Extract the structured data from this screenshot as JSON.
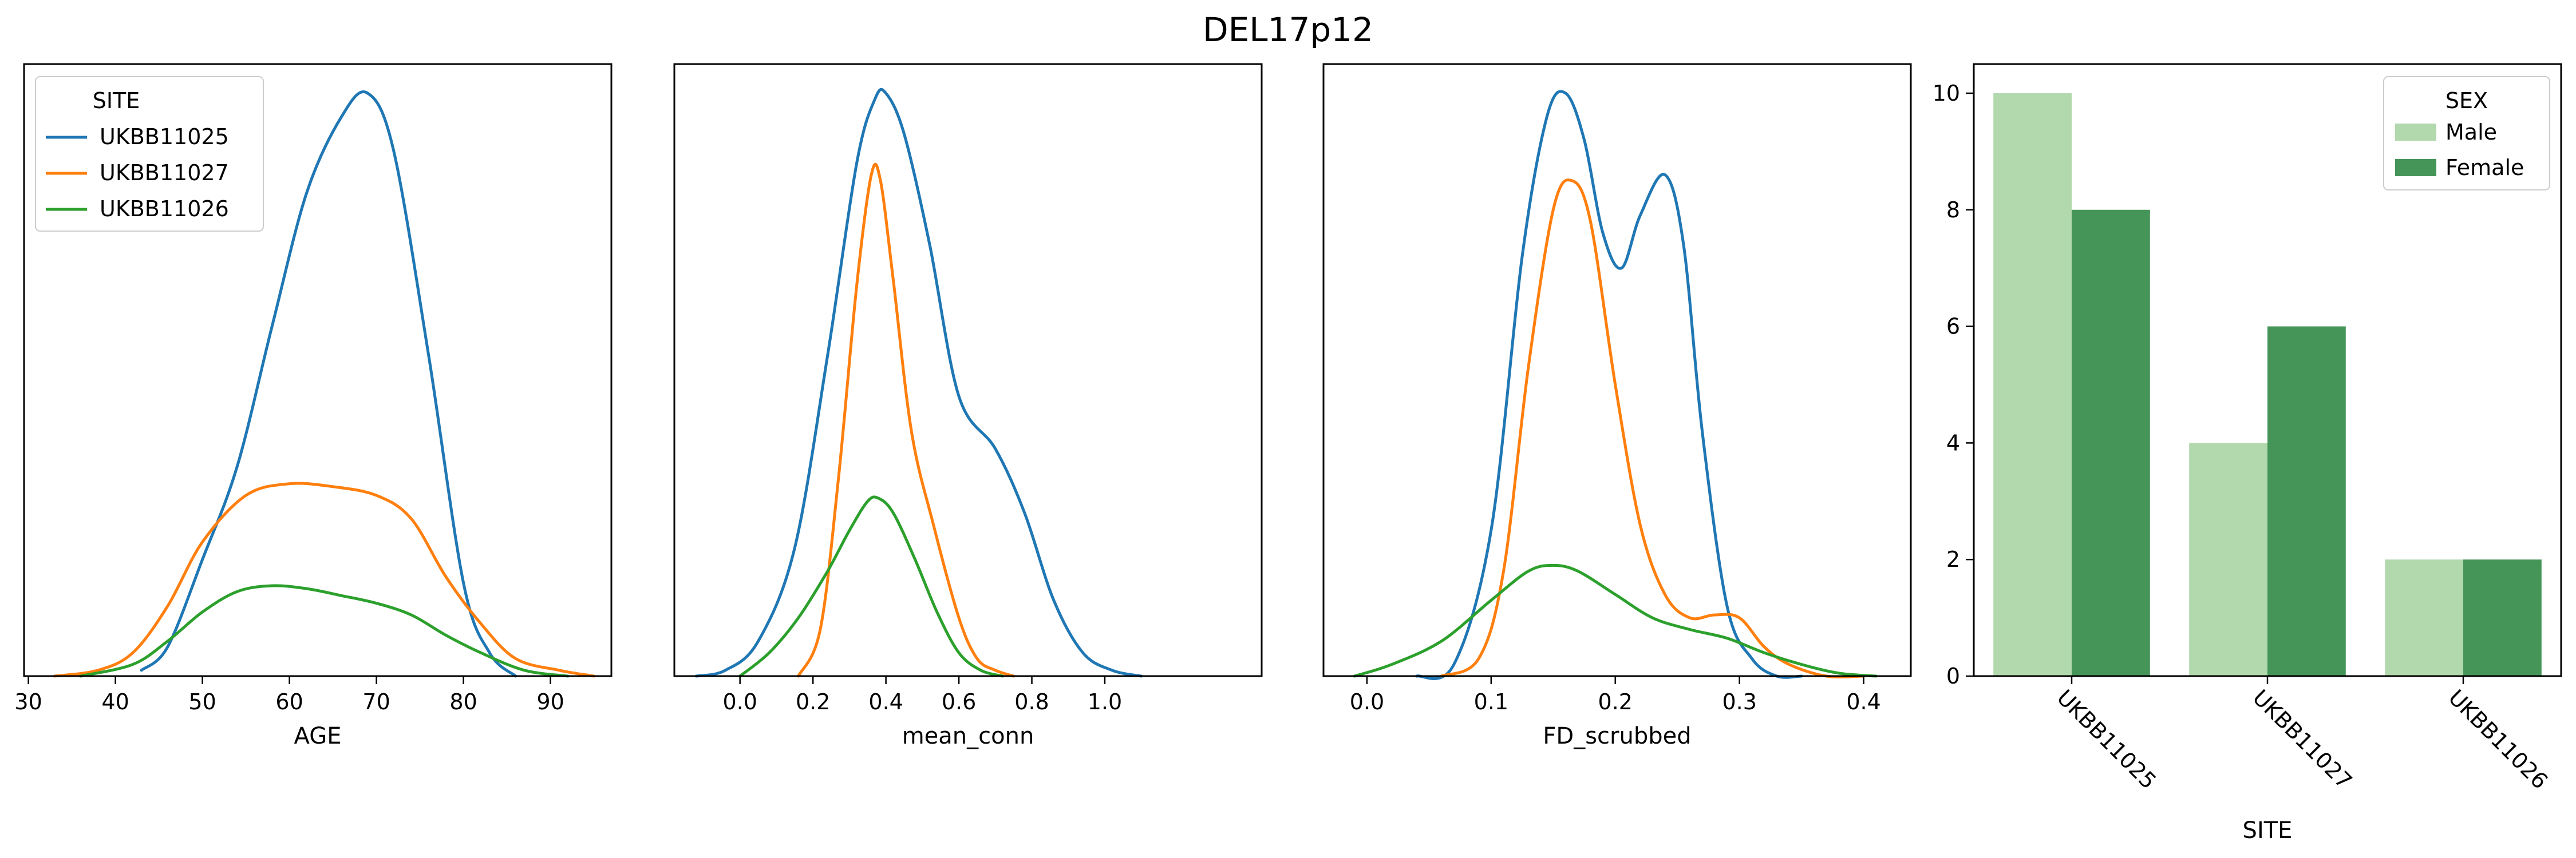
{
  "figure": {
    "title": "DEL17p12"
  },
  "colors": {
    "UKBB11025": "#1f77b4",
    "UKBB11027": "#ff7f0e",
    "UKBB11026": "#2ca02c",
    "Male": "#b2d8ad",
    "Female": "#459559"
  },
  "chart_data": [
    {
      "type": "line",
      "subtype": "kde",
      "xlabel": "AGE",
      "ylabel": "",
      "xlim": [
        29.5,
        97
      ],
      "xticks": [
        30,
        40,
        50,
        60,
        70,
        80,
        90
      ],
      "ylim": [
        0,
        1.05
      ],
      "yticks_visible": false,
      "legend": {
        "title": "SITE",
        "position": "top-left",
        "entries": [
          "UKBB11025",
          "UKBB11027",
          "UKBB11026"
        ]
      },
      "series": [
        {
          "name": "UKBB11025",
          "x": [
            43,
            46,
            50,
            54,
            58,
            62,
            66,
            69,
            72,
            76,
            80,
            83,
            86
          ],
          "y": [
            0.01,
            0.05,
            0.2,
            0.36,
            0.6,
            0.83,
            0.96,
            1.0,
            0.9,
            0.55,
            0.16,
            0.04,
            0.0
          ]
        },
        {
          "name": "UKBB11027",
          "x": [
            33,
            38,
            42,
            46,
            50,
            55,
            60,
            65,
            70,
            74,
            78,
            82,
            86,
            91,
            95
          ],
          "y": [
            0.0,
            0.01,
            0.04,
            0.12,
            0.23,
            0.31,
            0.33,
            0.325,
            0.31,
            0.27,
            0.17,
            0.09,
            0.03,
            0.01,
            0.0
          ]
        },
        {
          "name": "UKBB11026",
          "x": [
            36,
            42,
            46,
            50,
            54,
            58,
            62,
            66,
            70,
            74,
            78,
            82,
            87,
            92
          ],
          "y": [
            0.0,
            0.02,
            0.06,
            0.11,
            0.145,
            0.155,
            0.15,
            0.138,
            0.125,
            0.105,
            0.07,
            0.04,
            0.01,
            0.0
          ]
        }
      ]
    },
    {
      "type": "line",
      "subtype": "kde",
      "xlabel": "mean_conn",
      "ylabel": "",
      "xlim": [
        -0.18,
        1.43
      ],
      "xticks": [
        0.0,
        0.2,
        0.4,
        0.6,
        0.8,
        1.0
      ],
      "ylim": [
        0,
        1.05
      ],
      "yticks_visible": false,
      "series": [
        {
          "name": "UKBB11025",
          "x": [
            -0.12,
            -0.04,
            0.05,
            0.15,
            0.24,
            0.32,
            0.37,
            0.4,
            0.45,
            0.52,
            0.6,
            0.7,
            0.78,
            0.86,
            0.94,
            1.02,
            1.1
          ],
          "y": [
            0.0,
            0.01,
            0.06,
            0.22,
            0.55,
            0.88,
            0.99,
            1.0,
            0.93,
            0.74,
            0.48,
            0.39,
            0.28,
            0.13,
            0.04,
            0.01,
            0.0
          ]
        },
        {
          "name": "UKBB11027",
          "x": [
            0.16,
            0.22,
            0.27,
            0.32,
            0.36,
            0.385,
            0.42,
            0.47,
            0.53,
            0.6,
            0.65,
            0.7,
            0.75
          ],
          "y": [
            0.0,
            0.08,
            0.34,
            0.67,
            0.86,
            0.85,
            0.68,
            0.42,
            0.26,
            0.1,
            0.03,
            0.01,
            0.0
          ]
        },
        {
          "name": "UKBB11026",
          "x": [
            0.0,
            0.08,
            0.16,
            0.24,
            0.3,
            0.35,
            0.38,
            0.42,
            0.48,
            0.54,
            0.6,
            0.66,
            0.72
          ],
          "y": [
            0.0,
            0.04,
            0.1,
            0.18,
            0.25,
            0.3,
            0.305,
            0.28,
            0.2,
            0.11,
            0.04,
            0.01,
            0.0
          ]
        }
      ]
    },
    {
      "type": "line",
      "subtype": "kde",
      "xlabel": "FD_scrubbed",
      "ylabel": "",
      "xlim": [
        -0.035,
        0.438
      ],
      "xticks": [
        0.0,
        0.1,
        0.2,
        0.3,
        0.4
      ],
      "ylim": [
        0,
        1.05
      ],
      "yticks_visible": false,
      "series": [
        {
          "name": "UKBB11025",
          "x": [
            0.04,
            0.07,
            0.1,
            0.125,
            0.145,
            0.16,
            0.175,
            0.19,
            0.205,
            0.22,
            0.24,
            0.255,
            0.27,
            0.29,
            0.31,
            0.33,
            0.35
          ],
          "y": [
            0.0,
            0.02,
            0.25,
            0.72,
            0.96,
            1.0,
            0.92,
            0.76,
            0.7,
            0.79,
            0.86,
            0.74,
            0.42,
            0.12,
            0.03,
            0.0,
            0.0
          ]
        },
        {
          "name": "UKBB11027",
          "x": [
            0.06,
            0.09,
            0.11,
            0.13,
            0.15,
            0.165,
            0.18,
            0.2,
            0.22,
            0.24,
            0.26,
            0.28,
            0.3,
            0.32,
            0.34,
            0.37,
            0.4
          ],
          "y": [
            0.0,
            0.03,
            0.18,
            0.53,
            0.8,
            0.85,
            0.78,
            0.5,
            0.26,
            0.14,
            0.1,
            0.105,
            0.1,
            0.05,
            0.02,
            0.0,
            0.0
          ]
        },
        {
          "name": "UKBB11026",
          "x": [
            -0.01,
            0.02,
            0.06,
            0.1,
            0.13,
            0.15,
            0.17,
            0.2,
            0.23,
            0.26,
            0.29,
            0.32,
            0.35,
            0.38,
            0.41
          ],
          "y": [
            0.0,
            0.02,
            0.06,
            0.13,
            0.18,
            0.19,
            0.18,
            0.14,
            0.1,
            0.08,
            0.065,
            0.04,
            0.02,
            0.005,
            0.0
          ]
        }
      ]
    },
    {
      "type": "bar",
      "xlabel": "SITE",
      "ylabel": "",
      "categories": [
        "UKBB11025",
        "UKBB11027",
        "UKBB11026"
      ],
      "ylim": [
        0,
        10.5
      ],
      "yticks": [
        0,
        2,
        4,
        6,
        8,
        10
      ],
      "legend": {
        "title": "SEX",
        "position": "top-right",
        "entries": [
          "Male",
          "Female"
        ]
      },
      "series": [
        {
          "name": "Male",
          "values": [
            10,
            4,
            2
          ]
        },
        {
          "name": "Female",
          "values": [
            8,
            6,
            2
          ]
        }
      ]
    }
  ]
}
